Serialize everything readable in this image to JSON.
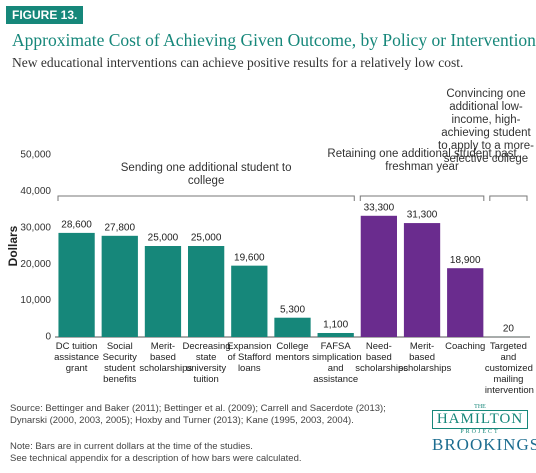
{
  "figure_label": "FIGURE 13.",
  "chart_data": {
    "type": "bar",
    "title": "Approximate Cost of Achieving Given Outcome, by Policy or Intervention",
    "subtitle": "New educational interventions can achieve positive results for a relatively low cost.",
    "y_label": "Dollars",
    "categories": [
      "DC tuition assistance grant",
      "Social Security student benefits",
      "Merit-based scholarships",
      "Decreasing state university tuition",
      "Expansion of Stafford loans",
      "College mentors",
      "FAFSA simplication and assistance",
      "Need-based scholarships",
      "Merit-based scholarships",
      "Coaching",
      "Targeted and customized mailing intervention"
    ],
    "values": [
      28600,
      27800,
      25000,
      25000,
      19600,
      5300,
      1100,
      33300,
      31300,
      18900,
      20
    ],
    "value_labels": [
      "28,600",
      "27,800",
      "25,000",
      "25,000",
      "19,600",
      "5,300",
      "1,100",
      "33,300",
      "31,300",
      "18,900",
      "20"
    ],
    "colors": [
      "#16877a",
      "#16877a",
      "#16877a",
      "#16877a",
      "#16877a",
      "#16877a",
      "#16877a",
      "#6a2c8e",
      "#6a2c8e",
      "#6a2c8e",
      "#16877a"
    ],
    "ylim": [
      0,
      50000
    ],
    "yticks": [
      0,
      {
        "value": 10000,
        "label": "10,000"
      },
      {
        "value": 20000,
        "label": "20,000"
      },
      {
        "value": 30000,
        "label": "30,000"
      },
      {
        "value": 40000,
        "label": "40,000"
      },
      {
        "value": 50000,
        "label": "50,000"
      }
    ],
    "grid": false,
    "annotations": [
      "Sending one additional student to college",
      "Retaining one additional student past freshman year",
      "Convincing one additional low-income, high-achieving student to apply to a more-selective college"
    ]
  },
  "source": "Source: Bettinger and Baker (2011); Bettinger et al. (2009); Carrell and Sacerdote (2013); Dynarski (2000, 2003, 2005); Hoxby and Turner (2013); Kane (1995, 2003, 2004).",
  "notes": [
    "Note: Bars are in current dollars at the time of the studies.",
    "See technical appendix for a description of how bars were calculated."
  ],
  "logo": {
    "top": "THE",
    "name": "HAMILTON",
    "sub": "PROJECT",
    "org": "BROOKINGS"
  }
}
